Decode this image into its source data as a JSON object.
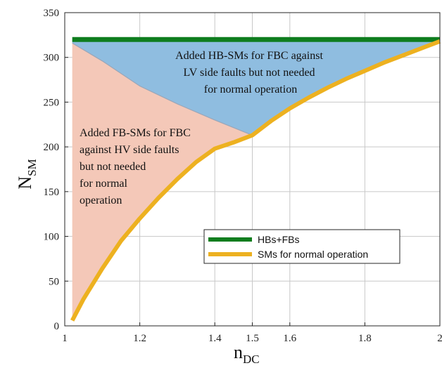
{
  "chart_data": {
    "type": "area",
    "xlabel": {
      "main": "n",
      "sub": "DC"
    },
    "ylabel": {
      "main": "N",
      "sub": "SM"
    },
    "xlim": [
      1,
      2
    ],
    "ylim": [
      0,
      350
    ],
    "x_ticks": [
      {
        "value": 1,
        "label": "1"
      },
      {
        "value": 1.2,
        "label": "1.2"
      },
      {
        "value": 1.4,
        "label": "1.4"
      },
      {
        "value": 1.5,
        "label": "1.5"
      },
      {
        "value": 1.6,
        "label": "1.6"
      },
      {
        "value": 1.8,
        "label": "1.8"
      },
      {
        "value": 2,
        "label": "2"
      }
    ],
    "y_ticks": [
      {
        "value": 0,
        "label": "0"
      },
      {
        "value": 50,
        "label": "50"
      },
      {
        "value": 100,
        "label": "100"
      },
      {
        "value": 150,
        "label": "150"
      },
      {
        "value": 200,
        "label": "200"
      },
      {
        "value": 250,
        "label": "250"
      },
      {
        "value": 300,
        "label": "300"
      },
      {
        "value": 350,
        "label": "350"
      }
    ],
    "grid": true,
    "legend_position": "lower-right",
    "series": [
      {
        "name": "HBs+FBs",
        "color": "#0e7d1e",
        "x": [
          1.02,
          2.0
        ],
        "y": [
          320,
          320
        ]
      },
      {
        "name": "SMs for normal operation",
        "color": "#edb120",
        "x": [
          1.02,
          1.05,
          1.1,
          1.15,
          1.2,
          1.25,
          1.3,
          1.35,
          1.4,
          1.45,
          1.5,
          1.55,
          1.6,
          1.65,
          1.7,
          1.75,
          1.8,
          1.85,
          1.9,
          1.95,
          2.0
        ],
        "y": [
          6,
          30,
          64,
          95,
          120,
          143,
          164,
          183,
          198,
          205,
          213,
          229,
          243,
          255,
          266,
          276,
          285,
          294,
          302,
          310,
          318
        ]
      }
    ],
    "shaded_regions": [
      {
        "fill": "#f4c8b8",
        "x": [
          1.02,
          1.1,
          1.2,
          1.3,
          1.4,
          1.5
        ],
        "upper_y": [
          316,
          296,
          268,
          248,
          230,
          213
        ]
      },
      {
        "fill": "#8fbde0",
        "x": [
          1.02,
          1.1,
          1.2,
          1.3,
          1.4,
          1.5,
          1.6,
          1.7,
          1.8,
          1.9,
          2.0
        ],
        "lower_y": [
          316,
          296,
          268,
          248,
          230,
          213,
          243,
          266,
          285,
          302,
          318
        ]
      }
    ],
    "annotations": [
      {
        "id": "lv",
        "lines": [
          "Added HB-SMs for FBC against",
          "LV side faults but not needed",
          "for normal operation"
        ]
      },
      {
        "id": "hv",
        "lines": [
          "Added FB-SMs for FBC",
          "against HV side faults",
          "but not needed",
          "for normal",
          "operation"
        ]
      }
    ]
  }
}
